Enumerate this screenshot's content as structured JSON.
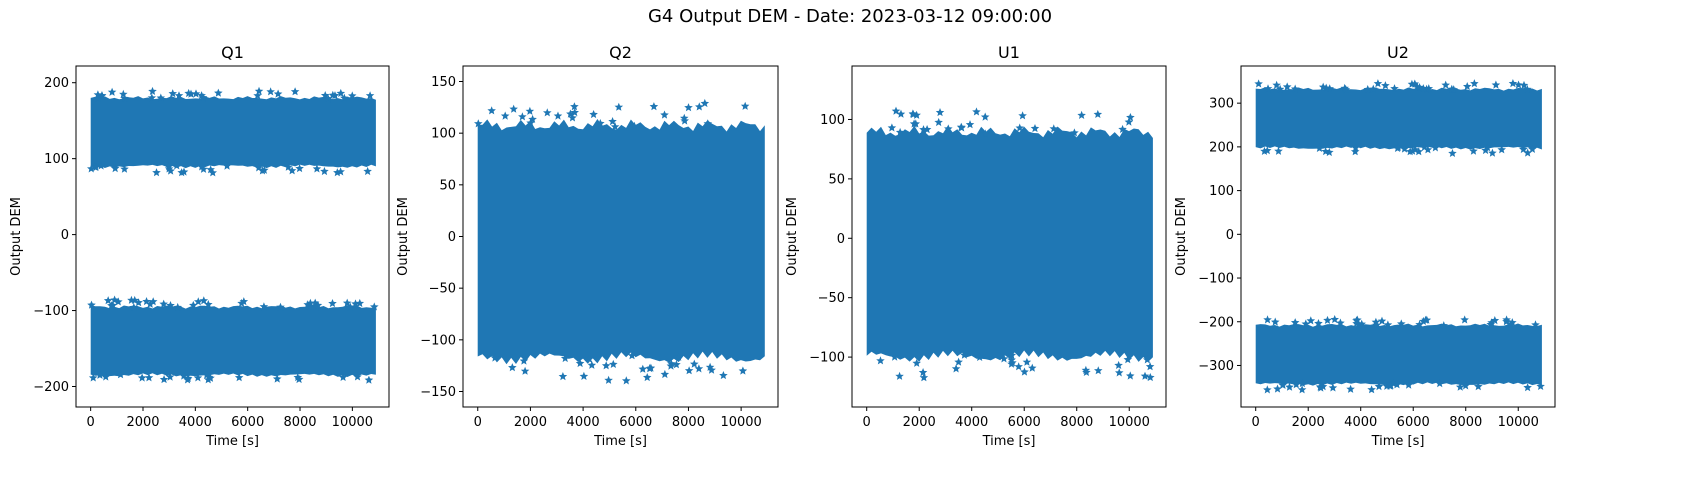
{
  "suptitle": "G4 Output DEM - Date: 2023-03-12 09:00:00",
  "colors": {
    "series": "#1f77b4",
    "axes": "#000000"
  },
  "chart_data": [
    {
      "type": "scatter",
      "marker": "star",
      "title": "Q1",
      "xlabel": "Time [s]",
      "ylabel": "Output DEM",
      "xlim": [
        -560,
        11400
      ],
      "ylim": [
        -227,
        222
      ],
      "xticks": [
        0,
        2000,
        4000,
        6000,
        8000,
        10000
      ],
      "yticks": [
        -200,
        -100,
        0,
        100,
        200
      ],
      "ytick_labels": [
        "−200",
        "−100",
        "0",
        "100",
        "200"
      ],
      "x_range": [
        0,
        10900
      ],
      "bands": [
        {
          "center": 135,
          "half_width": 50
        },
        {
          "center": -140,
          "half_width": 50
        }
      ]
    },
    {
      "type": "scatter",
      "marker": "star",
      "title": "Q2",
      "xlabel": "Time [s]",
      "ylabel": "Output DEM",
      "xlim": [
        -560,
        11400
      ],
      "ylim": [
        -165,
        165
      ],
      "xticks": [
        0,
        2000,
        4000,
        6000,
        8000,
        10000
      ],
      "yticks": [
        -150,
        -100,
        -50,
        0,
        50,
        100,
        150
      ],
      "ytick_labels": [
        "−150",
        "−100",
        "−50",
        "0",
        "50",
        "100",
        "150"
      ],
      "x_range": [
        0,
        10900
      ],
      "bands": [
        {
          "center": -5,
          "half_width": 125
        }
      ]
    },
    {
      "type": "scatter",
      "marker": "star",
      "title": "U1",
      "xlabel": "Time [s]",
      "ylabel": "Output DEM",
      "xlim": [
        -560,
        11400
      ],
      "ylim": [
        -142,
        145
      ],
      "xticks": [
        0,
        2000,
        4000,
        6000,
        8000,
        10000
      ],
      "yticks": [
        -100,
        -50,
        0,
        50,
        100
      ],
      "ytick_labels": [
        "−100",
        "−50",
        "0",
        "50",
        "100"
      ],
      "x_range": [
        0,
        10900
      ],
      "bands": [
        {
          "center": -5,
          "half_width": 105
        }
      ]
    },
    {
      "type": "scatter",
      "marker": "star",
      "title": "U2",
      "xlabel": "Time [s]",
      "ylabel": "Output DEM",
      "xlim": [
        -560,
        11400
      ],
      "ylim": [
        -395,
        385
      ],
      "xticks": [
        0,
        2000,
        4000,
        6000,
        8000,
        10000
      ],
      "yticks": [
        -300,
        -200,
        -100,
        0,
        100,
        200,
        300
      ],
      "ytick_labels": [
        "−300",
        "−200",
        "−100",
        "0",
        "100",
        "200",
        "300"
      ],
      "x_range": [
        0,
        10900
      ],
      "bands": [
        {
          "center": 265,
          "half_width": 75
        },
        {
          "center": -275,
          "half_width": 75
        }
      ]
    }
  ]
}
